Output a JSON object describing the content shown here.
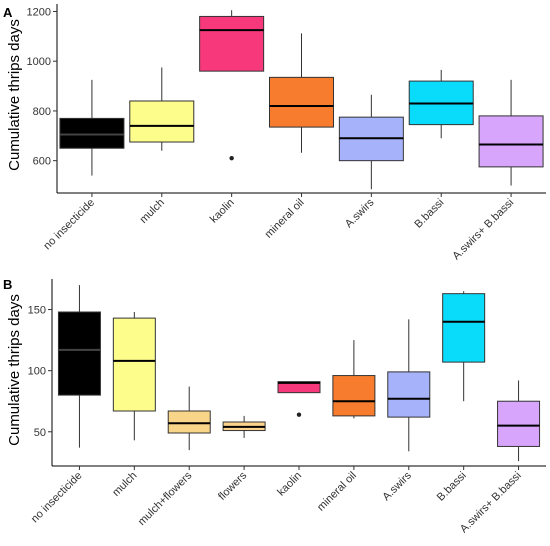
{
  "chart_data": [
    {
      "panel": "A",
      "type": "boxplot",
      "ylabel": "Cumulative thrips days",
      "xlabel": "",
      "ylim": [
        470,
        1230
      ],
      "yticks": [
        600,
        800,
        1000,
        1200
      ],
      "grid": false,
      "categories": [
        "no insecticide",
        "mulch",
        "kaolin",
        "mineral oil",
        "A.swirs",
        "B.bassi",
        "A.swirs+ B.bassi"
      ],
      "colors": [
        "#000000",
        "#fcfd8b",
        "#f7397c",
        "#f87c2e",
        "#a6b3fb",
        "#09dcfa",
        "#d7a5fc"
      ],
      "boxes": [
        {
          "whisker_low": 540,
          "q1": 650,
          "median": 705,
          "q3": 770,
          "whisker_high": 925,
          "outliers": []
        },
        {
          "whisker_low": 640,
          "q1": 675,
          "median": 740,
          "q3": 840,
          "whisker_high": 975,
          "outliers": []
        },
        {
          "whisker_low": 960,
          "q1": 960,
          "median": 1125,
          "q3": 1180,
          "whisker_high": 1205,
          "outliers": [
            610
          ]
        },
        {
          "whisker_low": 632,
          "q1": 735,
          "median": 820,
          "q3": 935,
          "whisker_high": 1112,
          "outliers": []
        },
        {
          "whisker_low": 485,
          "q1": 600,
          "median": 690,
          "q3": 775,
          "whisker_high": 865,
          "outliers": []
        },
        {
          "whisker_low": 690,
          "q1": 745,
          "median": 830,
          "q3": 920,
          "whisker_high": 965,
          "outliers": []
        },
        {
          "whisker_low": 500,
          "q1": 575,
          "median": 665,
          "q3": 780,
          "whisker_high": 925,
          "outliers": []
        }
      ]
    },
    {
      "panel": "B",
      "type": "boxplot",
      "ylabel": "Cumulative thrips days",
      "xlabel": "",
      "ylim": [
        22,
        175
      ],
      "yticks": [
        50,
        100,
        150
      ],
      "grid": false,
      "categories": [
        "no insecticide",
        "mulch",
        "mulch+flowers",
        "flowers",
        "kaolin",
        "mineral oil",
        "A.swirs",
        "B.bassi",
        "A.swirs+ B.bassi"
      ],
      "colors": [
        "#000000",
        "#fcfd8b",
        "#f9d589",
        "#fdd28c",
        "#f7397c",
        "#f87c2e",
        "#a6b3fb",
        "#09dcfa",
        "#d7a5fc"
      ],
      "boxes": [
        {
          "whisker_low": 37,
          "q1": 80,
          "median": 117,
          "q3": 148,
          "whisker_high": 170,
          "outliers": []
        },
        {
          "whisker_low": 43,
          "q1": 67,
          "median": 108,
          "q3": 143,
          "whisker_high": 148,
          "outliers": []
        },
        {
          "whisker_low": 35,
          "q1": 49,
          "median": 57,
          "q3": 67,
          "whisker_high": 87,
          "outliers": []
        },
        {
          "whisker_low": 45,
          "q1": 51,
          "median": 54,
          "q3": 58,
          "whisker_high": 63,
          "outliers": []
        },
        {
          "whisker_low": 82,
          "q1": 82,
          "median": 90,
          "q3": 91,
          "whisker_high": 91,
          "outliers": [
            64
          ]
        },
        {
          "whisker_low": 61,
          "q1": 63,
          "median": 75,
          "q3": 96,
          "whisker_high": 125,
          "outliers": []
        },
        {
          "whisker_low": 34,
          "q1": 62,
          "median": 77,
          "q3": 99,
          "whisker_high": 142,
          "outliers": []
        },
        {
          "whisker_low": 75,
          "q1": 107,
          "median": 140,
          "q3": 163,
          "whisker_high": 165,
          "outliers": []
        },
        {
          "whisker_low": 26,
          "q1": 38,
          "median": 55,
          "q3": 75,
          "whisker_high": 92,
          "outliers": []
        }
      ]
    }
  ]
}
